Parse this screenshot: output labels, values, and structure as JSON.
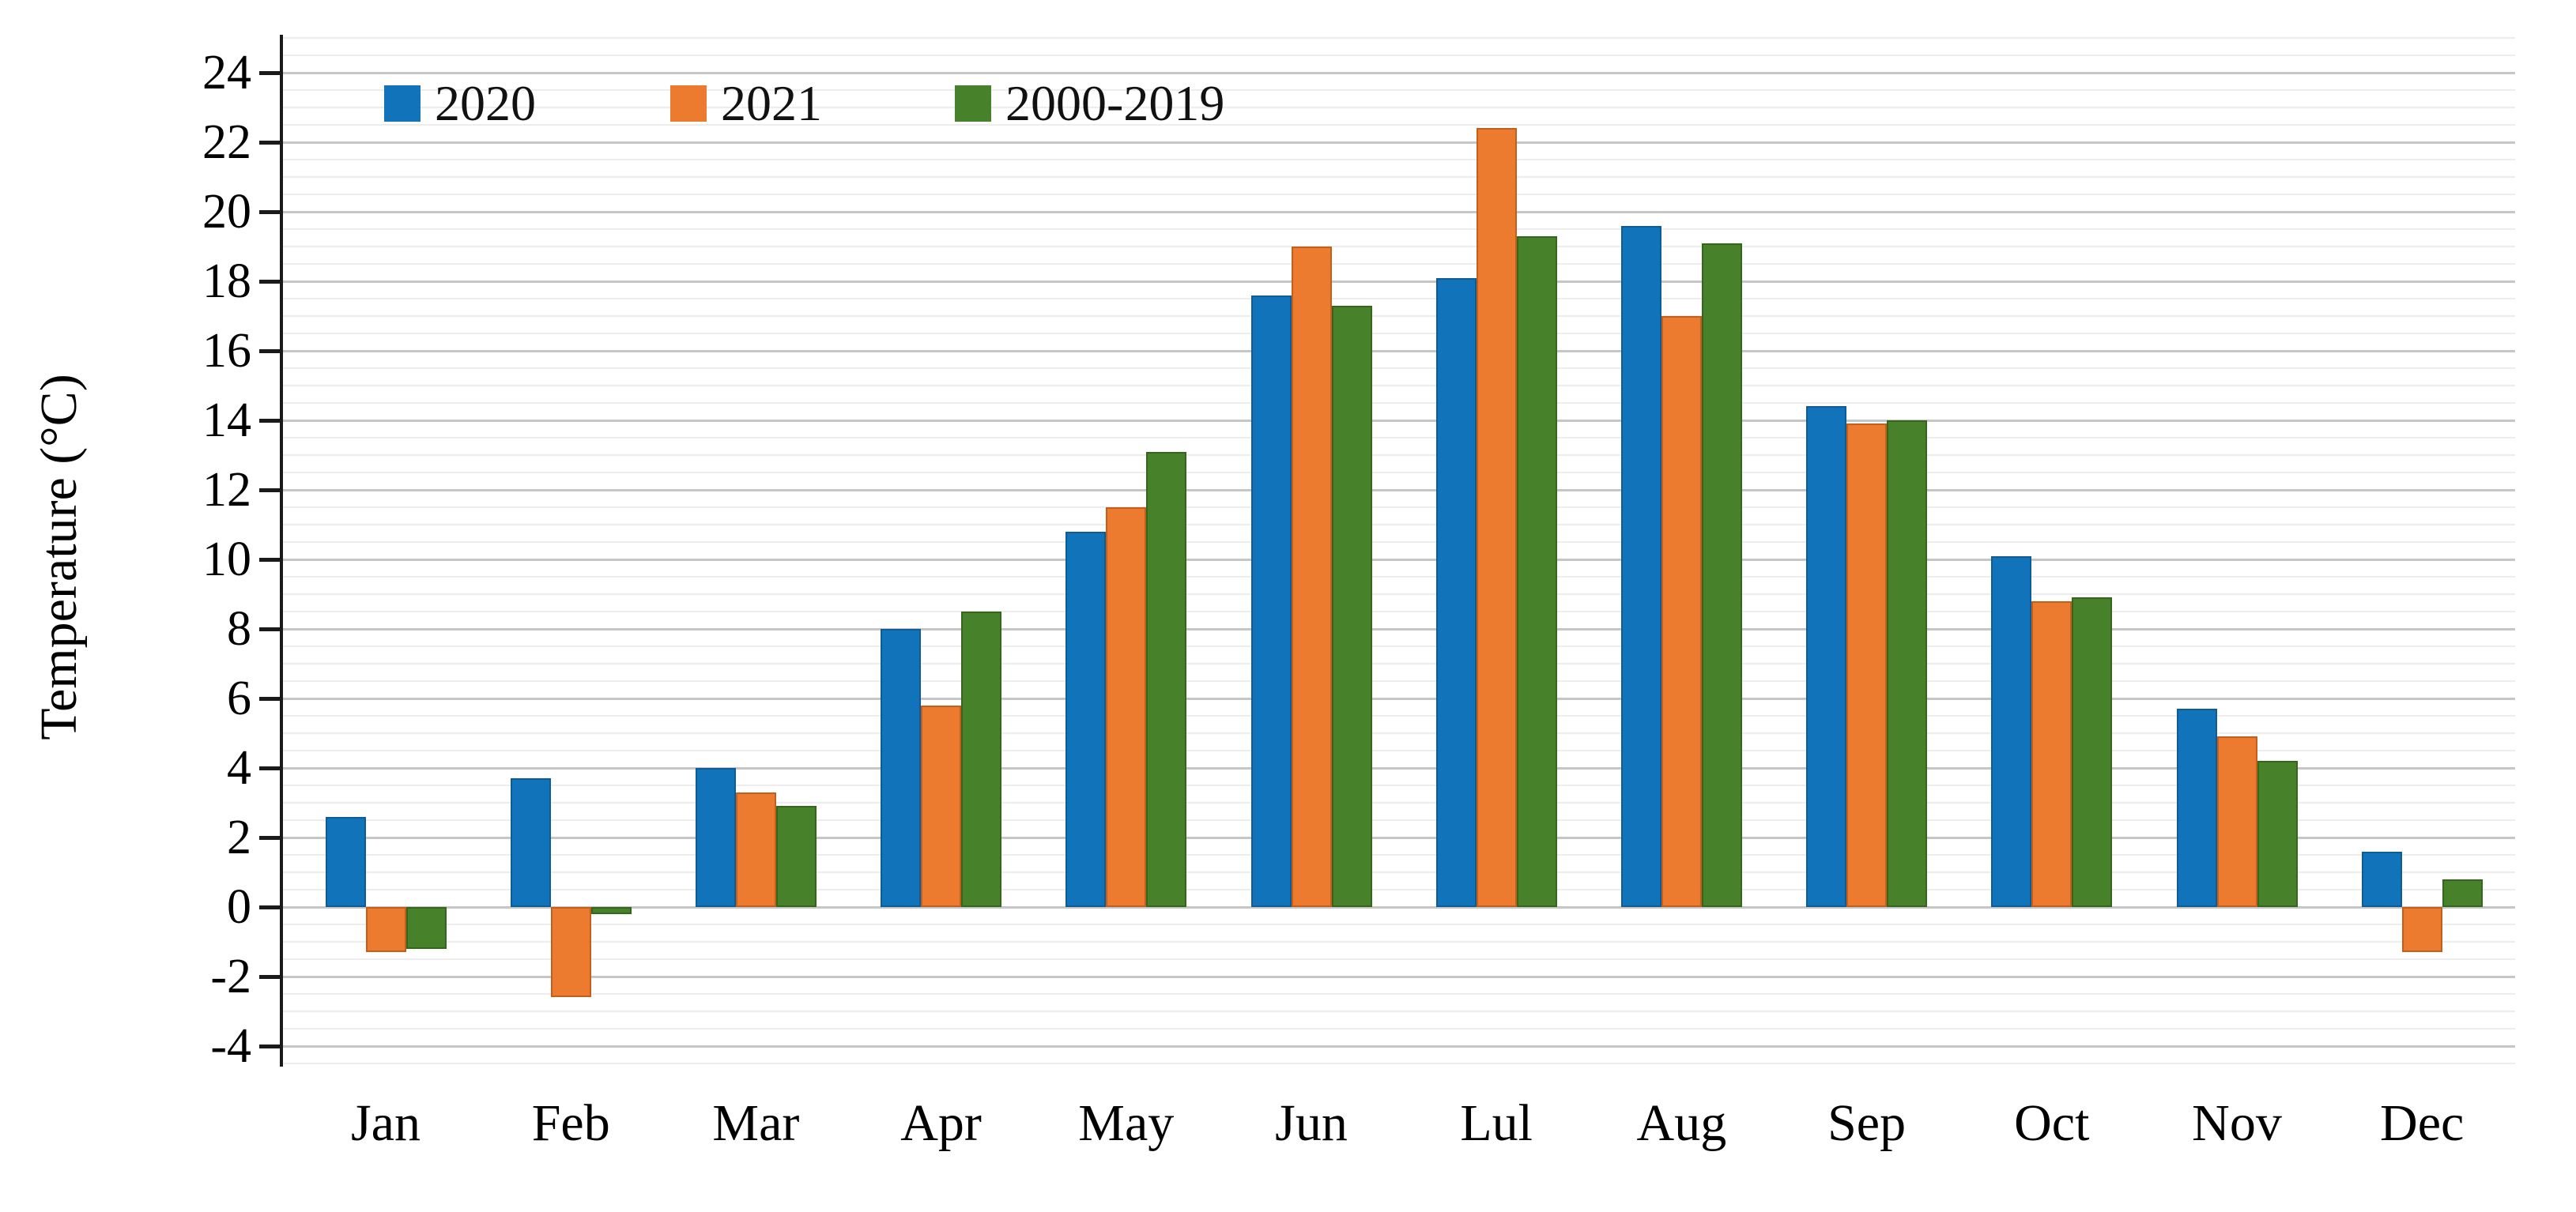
{
  "chart_data": {
    "type": "bar",
    "title": "",
    "xlabel": "",
    "ylabel": "Temperature (°C)",
    "categories": [
      "Jan",
      "Feb",
      "Mar",
      "Apr",
      "May",
      "Jun",
      "Lul",
      "Aug",
      "Sep",
      "Oct",
      "Nov",
      "Dec"
    ],
    "series": [
      {
        "name": "2020",
        "color": "#1173B9",
        "border_color": "#0d5c96",
        "values": [
          2.6,
          3.7,
          4.0,
          8.0,
          10.8,
          17.6,
          18.1,
          19.6,
          14.4,
          10.1,
          5.7,
          1.6
        ]
      },
      {
        "name": "2021",
        "color": "#EC7B30",
        "border_color": "#c25f1d",
        "values": [
          -1.3,
          -2.6,
          3.3,
          5.8,
          11.5,
          19.0,
          22.4,
          17.0,
          13.9,
          8.8,
          4.9,
          -1.3
        ]
      },
      {
        "name": "2000-2019",
        "color": "#47822A",
        "border_color": "#35661c",
        "values": [
          -1.2,
          -0.2,
          2.9,
          8.5,
          13.1,
          17.3,
          19.3,
          19.1,
          14.0,
          8.9,
          4.2,
          0.8
        ]
      }
    ],
    "y_ticks": [
      24,
      22,
      20,
      18,
      16,
      14,
      12,
      10,
      8,
      6,
      4,
      2,
      0,
      -2,
      -4
    ],
    "ylim": [
      -4.5,
      25
    ],
    "grid": {
      "minor_every": 0.5,
      "major_every": 2,
      "minor_color": "#ededed",
      "major_color": "#c6c6c6"
    },
    "legend_position": "top-left",
    "legend": [
      "2020",
      "2021",
      "2000-2019"
    ]
  }
}
